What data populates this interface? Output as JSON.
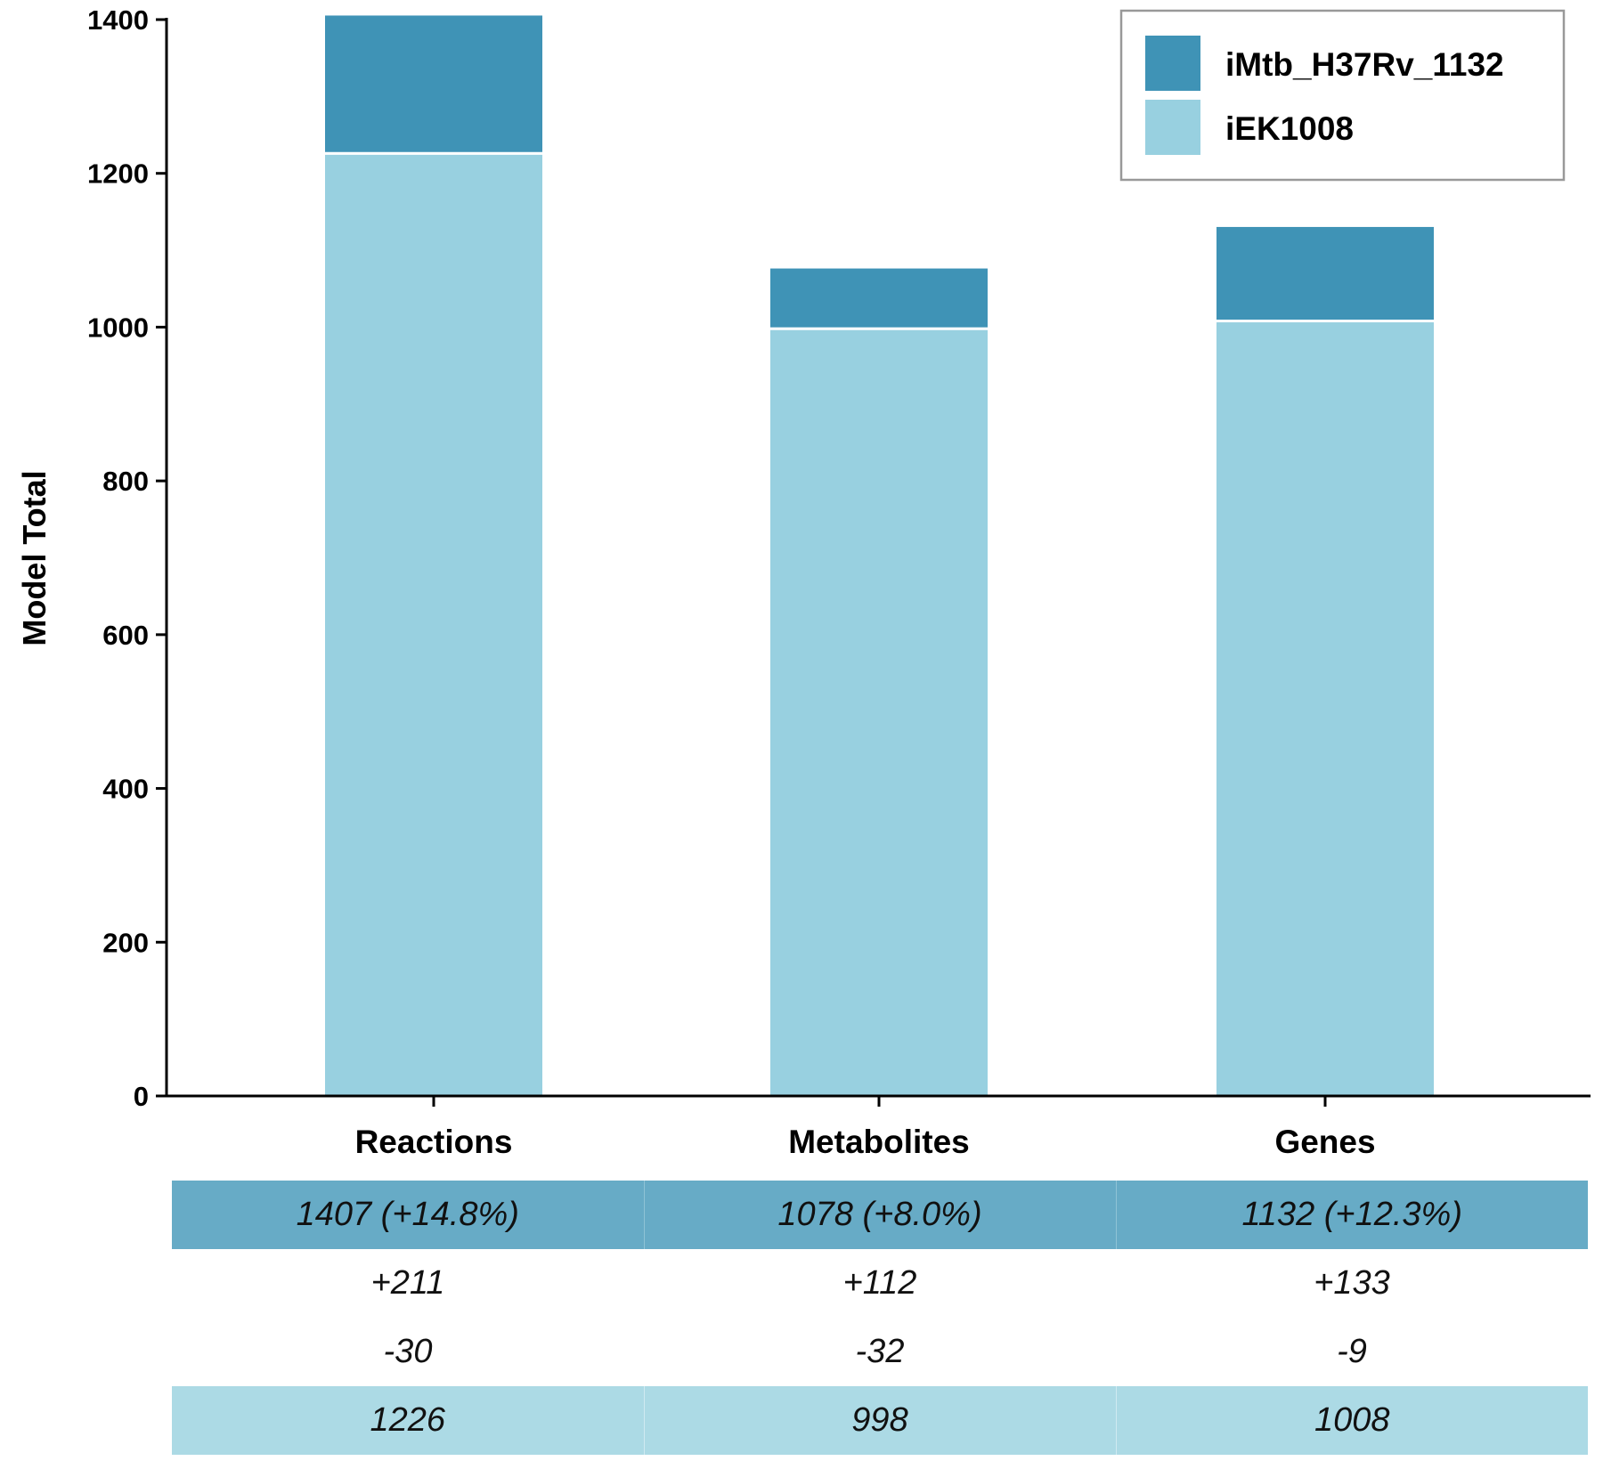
{
  "chart_data": {
    "type": "bar",
    "stacked": true,
    "categories": [
      "Reactions",
      "Metabolites",
      "Genes"
    ],
    "series": [
      {
        "name": "iEK1008",
        "color": "#98d0e0",
        "values": [
          1226,
          998,
          1008
        ]
      },
      {
        "name": "iMtb_H37Rv_1132",
        "color": "#3f93b6",
        "values": [
          181,
          80,
          124
        ]
      }
    ],
    "title": "",
    "xlabel": "",
    "ylabel": "Model Total",
    "ylim": [
      0,
      1400
    ],
    "yticks": [
      0,
      200,
      400,
      600,
      800,
      1000,
      1200,
      1400
    ],
    "grid": false,
    "legend_position": "top-right",
    "legend_order": [
      "iMtb_H37Rv_1132",
      "iEK1008"
    ]
  },
  "table": {
    "rows": [
      {
        "kind": "total",
        "cells": [
          "1407 (+14.8%)",
          "1078 (+8.0%)",
          "1132 (+12.3%)"
        ]
      },
      {
        "kind": "added",
        "cells": [
          "+211",
          "+112",
          "+133"
        ]
      },
      {
        "kind": "removed",
        "cells": [
          "-30",
          "-32",
          "-9"
        ]
      },
      {
        "kind": "base",
        "cells": [
          "1226",
          "998",
          "1008"
        ]
      }
    ],
    "colors": {
      "total_row": "#67abc6",
      "base_row": "#acdae5"
    }
  }
}
